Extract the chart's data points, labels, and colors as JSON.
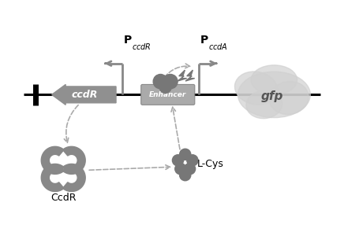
{
  "fig_width": 4.36,
  "fig_height": 2.95,
  "dpi": 100,
  "bg_color": "#ffffff",
  "gray_arrow": "#909090",
  "gray_enhancer": "#999999",
  "gray_box": "#aaaaaa",
  "gray_gfp": "#cccccc",
  "gray_protein": "#888888",
  "dashed_color": "#aaaaaa",
  "promoter_color": "#888888",
  "gene_ccdR_label": "ccdR",
  "enhancer_label": "Enhancer",
  "gfp_label": "gfp",
  "ccdr_protein_label": "CcdR",
  "lcys_label": "L-Cys"
}
